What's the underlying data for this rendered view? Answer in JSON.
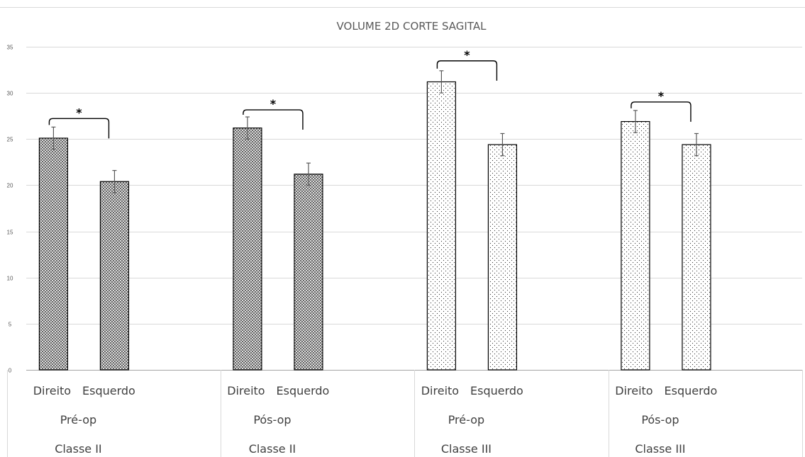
{
  "chart_data": {
    "type": "bar",
    "title": "VOLUME 2D CORTE SAGITAL",
    "ylim": [
      0,
      35
    ],
    "yticks": [
      "0",
      "5",
      "10",
      "15",
      "20",
      "25",
      "30",
      "35"
    ],
    "grid": true,
    "groups": [
      {
        "sub": "Pré-op",
        "top": "Classe II",
        "pattern": "crosshatch",
        "significance": "*",
        "categories": [
          "Direito",
          "Esquerdo"
        ],
        "values": [
          25.1,
          20.4
        ],
        "errors": [
          1.2,
          1.2
        ]
      },
      {
        "sub": "Pós-op",
        "top": "Classe II",
        "pattern": "crosshatch",
        "significance": "*",
        "categories": [
          "Direito",
          "Esquerdo"
        ],
        "values": [
          26.2,
          21.2
        ],
        "errors": [
          1.2,
          1.2
        ]
      },
      {
        "sub": "Pré-op",
        "top": "Classe III",
        "pattern": "dots",
        "significance": "*",
        "categories": [
          "Direito",
          "Esquerdo"
        ],
        "values": [
          31.2,
          24.4
        ],
        "errors": [
          1.2,
          1.2
        ]
      },
      {
        "sub": "Pós-op",
        "top": "Classe III",
        "pattern": "dots",
        "significance": "*",
        "categories": [
          "Direito",
          "Esquerdo"
        ],
        "values": [
          26.9,
          24.4
        ],
        "errors": [
          1.2,
          1.2
        ]
      }
    ]
  },
  "colors": {
    "grid": "#d9d9d9",
    "bar_stroke": "#000000",
    "text": "#404040"
  }
}
